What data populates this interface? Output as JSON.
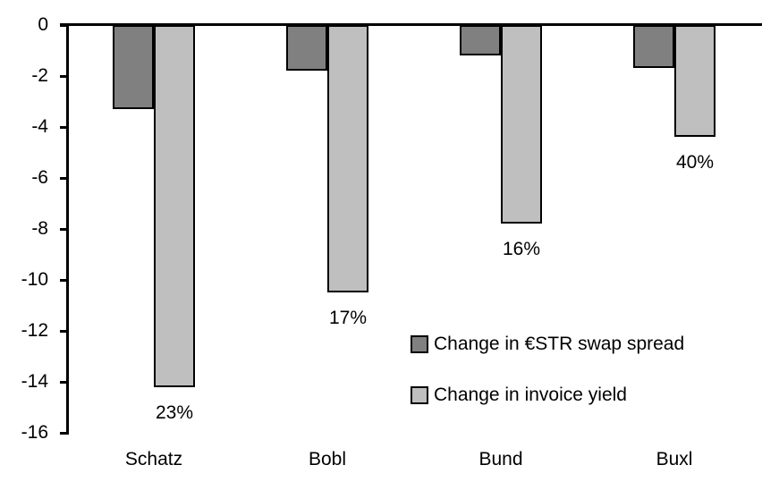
{
  "chart_data": {
    "type": "bar",
    "orientation": "vertical",
    "title": "",
    "xlabel": "",
    "ylabel": "",
    "categories": [
      "Schatz",
      "Bobl",
      "Bund",
      "Buxl"
    ],
    "series": [
      {
        "name": "Change in €STR swap spread",
        "color": "#808080",
        "values": [
          -3.3,
          -1.8,
          -1.2,
          -1.7
        ]
      },
      {
        "name": "Change in invoice yield",
        "color": "#BFBFBF",
        "values": [
          -14.2,
          -10.5,
          -7.8,
          -4.4
        ],
        "point_labels": [
          "23%",
          "17%",
          "16%",
          "40%"
        ]
      }
    ],
    "yticks": [
      0,
      -2,
      -4,
      -6,
      -8,
      -10,
      -12,
      -14,
      -16
    ],
    "ytick_labels": [
      "0",
      "-2",
      "-4",
      "-6",
      "-8",
      "-10",
      "-12",
      "-14",
      "-16"
    ],
    "ylim": [
      -16,
      0
    ],
    "grid": false,
    "legend_position": "inside-right",
    "axis_color": "#000000",
    "bar_border_color": "#000000",
    "background_color": "#FFFFFF"
  }
}
